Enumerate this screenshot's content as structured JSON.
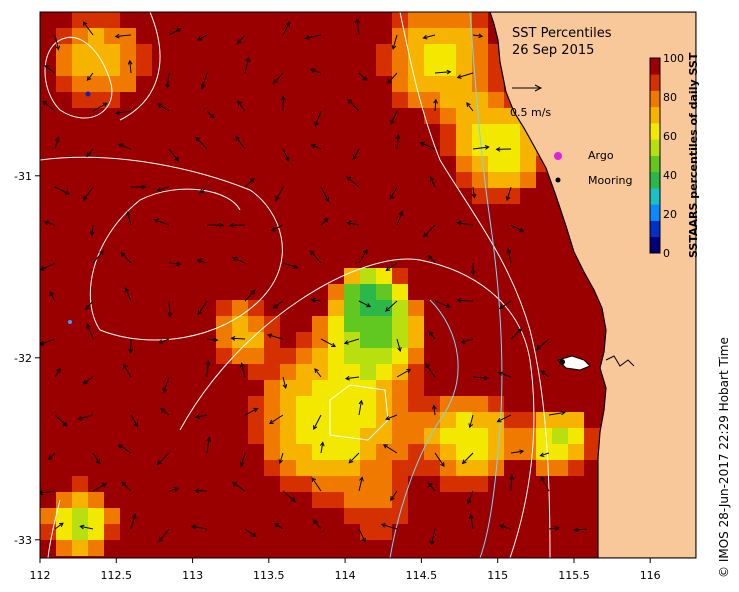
{
  "map": {
    "title": "SST Percentiles",
    "date": "26 Sep 2015",
    "velocity_scale_label": "0.5 m/s",
    "lon_range": [
      112,
      116.3
    ],
    "lat_range": [
      -33.1,
      -30.1
    ],
    "x_ticks": [
      "112",
      "112.5",
      "113",
      "113.5",
      "114",
      "114.5",
      "115",
      "115.5",
      "116"
    ],
    "y_ticks": [
      "-31",
      "-32",
      "-33"
    ],
    "colorbar": {
      "label": "SSTAARS percentiles of daily SST",
      "ticks": [
        "0",
        "20",
        "40",
        "60",
        "80",
        "100"
      ],
      "colors": [
        "#00007a",
        "#0030c8",
        "#0a8aff",
        "#18c0c8",
        "#2ab84a",
        "#60c820",
        "#b8e010",
        "#f2e800",
        "#f6b400",
        "#f07a00",
        "#d43000",
        "#9a0000"
      ]
    },
    "legend": {
      "argo_label": "Argo",
      "mooring_label": "Mooring",
      "argo_color": "#e020e0",
      "mooring_color": "#000000"
    },
    "land_color": "#f8c89a",
    "credit": "© IMOS 28-Jun-2017 22:29 Hobart Time"
  }
}
